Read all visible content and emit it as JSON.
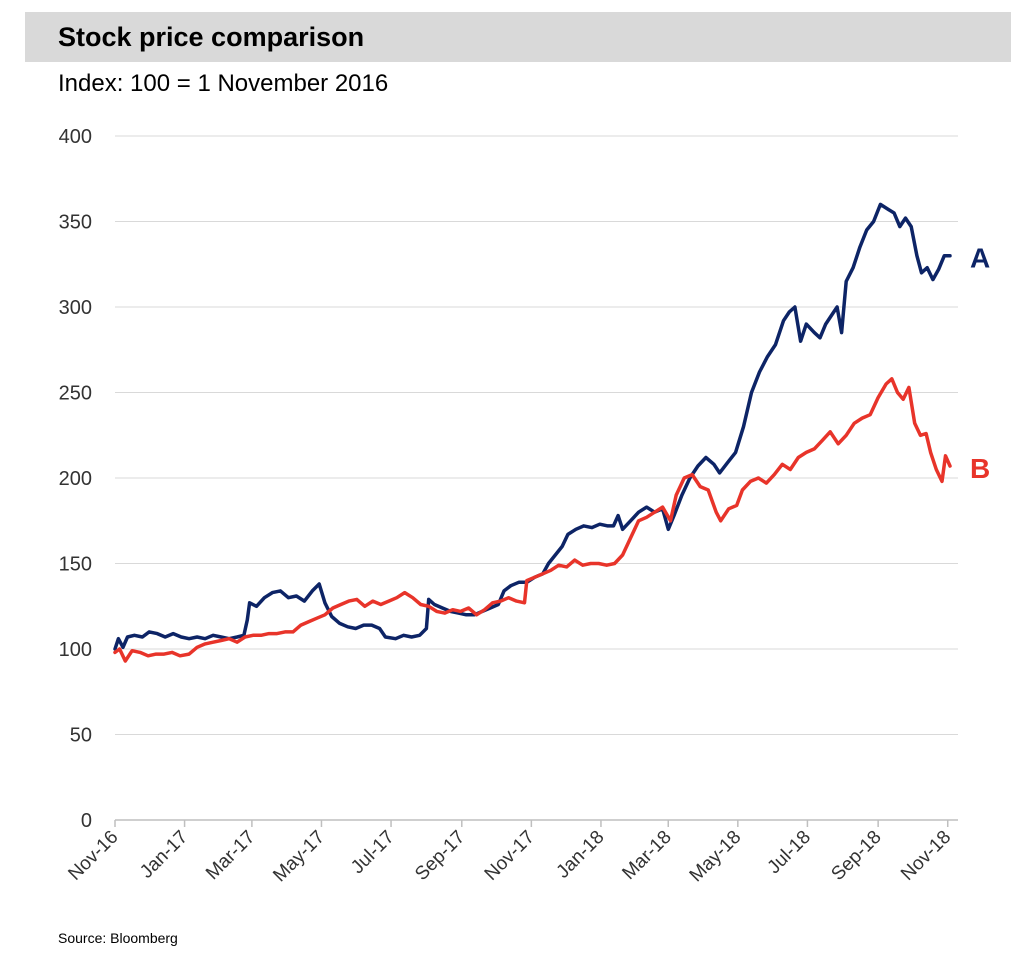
{
  "title": "Stock price comparison",
  "subtitle": "Index: 100 = 1 November 2016",
  "source": "Source: Bloomberg",
  "colors": {
    "A": "#0d2466",
    "B": "#e8342a",
    "grid": "#d9d9d9",
    "axis": "#bfbfbf"
  },
  "chart_data": {
    "type": "line",
    "title": "Stock price comparison",
    "subtitle": "Index: 100 = 1 November 2016",
    "xlabel": "",
    "ylabel": "",
    "ylim": [
      0,
      400
    ],
    "yticks": [
      0,
      50,
      100,
      150,
      200,
      250,
      300,
      350,
      400
    ],
    "xlim": [
      "2016-11-01",
      "2018-11-10"
    ],
    "xticks": [
      {
        "label": "Nov-16",
        "date": "2016-11-01"
      },
      {
        "label": "Jan-17",
        "date": "2017-01-01"
      },
      {
        "label": "Mar-17",
        "date": "2017-03-01"
      },
      {
        "label": "May-17",
        "date": "2017-05-01"
      },
      {
        "label": "Jul-17",
        "date": "2017-07-01"
      },
      {
        "label": "Sep-17",
        "date": "2017-09-01"
      },
      {
        "label": "Nov-17",
        "date": "2017-11-01"
      },
      {
        "label": "Jan-18",
        "date": "2018-01-01"
      },
      {
        "label": "Mar-18",
        "date": "2018-03-01"
      },
      {
        "label": "May-18",
        "date": "2018-05-01"
      },
      {
        "label": "Jul-18",
        "date": "2018-07-01"
      },
      {
        "label": "Sep-18",
        "date": "2018-09-01"
      },
      {
        "label": "Nov-18",
        "date": "2018-11-01"
      }
    ],
    "grid": "horizontal",
    "series": [
      {
        "name": "A",
        "color": "#0d2466",
        "points": [
          [
            "2016-11-01",
            100
          ],
          [
            "2016-11-04",
            106
          ],
          [
            "2016-11-08",
            101
          ],
          [
            "2016-11-12",
            107
          ],
          [
            "2016-11-18",
            108
          ],
          [
            "2016-11-25",
            107
          ],
          [
            "2016-12-01",
            110
          ],
          [
            "2016-12-08",
            109
          ],
          [
            "2016-12-15",
            107
          ],
          [
            "2016-12-22",
            109
          ],
          [
            "2016-12-29",
            107
          ],
          [
            "2017-01-05",
            106
          ],
          [
            "2017-01-12",
            107
          ],
          [
            "2017-01-19",
            106
          ],
          [
            "2017-01-26",
            108
          ],
          [
            "2017-02-02",
            107
          ],
          [
            "2017-02-09",
            106
          ],
          [
            "2017-02-16",
            107
          ],
          [
            "2017-02-22",
            108
          ],
          [
            "2017-02-25",
            117
          ],
          [
            "2017-02-27",
            127
          ],
          [
            "2017-03-05",
            125
          ],
          [
            "2017-03-12",
            130
          ],
          [
            "2017-03-19",
            133
          ],
          [
            "2017-03-26",
            134
          ],
          [
            "2017-04-02",
            130
          ],
          [
            "2017-04-09",
            131
          ],
          [
            "2017-04-16",
            128
          ],
          [
            "2017-04-23",
            134
          ],
          [
            "2017-04-29",
            138
          ],
          [
            "2017-05-04",
            127
          ],
          [
            "2017-05-10",
            119
          ],
          [
            "2017-05-17",
            115
          ],
          [
            "2017-05-24",
            113
          ],
          [
            "2017-05-31",
            112
          ],
          [
            "2017-06-07",
            114
          ],
          [
            "2017-06-14",
            114
          ],
          [
            "2017-06-21",
            112
          ],
          [
            "2017-06-26",
            107
          ],
          [
            "2017-07-05",
            106
          ],
          [
            "2017-07-12",
            108
          ],
          [
            "2017-07-19",
            107
          ],
          [
            "2017-07-26",
            108
          ],
          [
            "2017-08-01",
            112
          ],
          [
            "2017-08-03",
            129
          ],
          [
            "2017-08-08",
            126
          ],
          [
            "2017-08-15",
            124
          ],
          [
            "2017-08-22",
            122
          ],
          [
            "2017-08-29",
            121
          ],
          [
            "2017-09-05",
            120
          ],
          [
            "2017-09-12",
            120
          ],
          [
            "2017-09-19",
            122
          ],
          [
            "2017-09-26",
            124
          ],
          [
            "2017-10-03",
            126
          ],
          [
            "2017-10-08",
            134
          ],
          [
            "2017-10-14",
            137
          ],
          [
            "2017-10-21",
            139
          ],
          [
            "2017-10-28",
            139
          ],
          [
            "2017-11-04",
            142
          ],
          [
            "2017-11-11",
            144
          ],
          [
            "2017-11-16",
            150
          ],
          [
            "2017-11-22",
            155
          ],
          [
            "2017-11-28",
            160
          ],
          [
            "2017-12-03",
            167
          ],
          [
            "2017-12-10",
            170
          ],
          [
            "2017-12-17",
            172
          ],
          [
            "2017-12-24",
            171
          ],
          [
            "2017-12-31",
            173
          ],
          [
            "2018-01-07",
            172
          ],
          [
            "2018-01-12",
            172
          ],
          [
            "2018-01-16",
            178
          ],
          [
            "2018-01-20",
            170
          ],
          [
            "2018-01-27",
            175
          ],
          [
            "2018-02-03",
            180
          ],
          [
            "2018-02-10",
            183
          ],
          [
            "2018-02-17",
            180
          ],
          [
            "2018-02-24",
            182
          ],
          [
            "2018-03-01",
            170
          ],
          [
            "2018-03-06",
            178
          ],
          [
            "2018-03-13",
            190
          ],
          [
            "2018-03-20",
            200
          ],
          [
            "2018-03-27",
            207
          ],
          [
            "2018-04-03",
            212
          ],
          [
            "2018-04-10",
            208
          ],
          [
            "2018-04-15",
            203
          ],
          [
            "2018-04-22",
            209
          ],
          [
            "2018-04-29",
            215
          ],
          [
            "2018-05-06",
            230
          ],
          [
            "2018-05-13",
            250
          ],
          [
            "2018-05-20",
            262
          ],
          [
            "2018-05-27",
            271
          ],
          [
            "2018-06-03",
            278
          ],
          [
            "2018-06-10",
            292
          ],
          [
            "2018-06-15",
            297
          ],
          [
            "2018-06-20",
            300
          ],
          [
            "2018-06-25",
            280
          ],
          [
            "2018-06-30",
            290
          ],
          [
            "2018-07-07",
            285
          ],
          [
            "2018-07-12",
            282
          ],
          [
            "2018-07-17",
            290
          ],
          [
            "2018-07-22",
            295
          ],
          [
            "2018-07-27",
            300
          ],
          [
            "2018-07-31",
            285
          ],
          [
            "2018-08-04",
            315
          ],
          [
            "2018-08-10",
            323
          ],
          [
            "2018-08-16",
            335
          ],
          [
            "2018-08-22",
            345
          ],
          [
            "2018-08-28",
            350
          ],
          [
            "2018-09-03",
            360
          ],
          [
            "2018-09-10",
            357
          ],
          [
            "2018-09-15",
            355
          ],
          [
            "2018-09-20",
            347
          ],
          [
            "2018-09-25",
            352
          ],
          [
            "2018-09-30",
            347
          ],
          [
            "2018-10-05",
            330
          ],
          [
            "2018-10-09",
            320
          ],
          [
            "2018-10-14",
            323
          ],
          [
            "2018-10-19",
            316
          ],
          [
            "2018-10-24",
            322
          ],
          [
            "2018-10-29",
            330
          ],
          [
            "2018-11-03",
            330
          ]
        ]
      },
      {
        "name": "B",
        "color": "#e8342a",
        "points": [
          [
            "2016-11-01",
            98
          ],
          [
            "2016-11-05",
            100
          ],
          [
            "2016-11-10",
            93
          ],
          [
            "2016-11-16",
            99
          ],
          [
            "2016-11-23",
            98
          ],
          [
            "2016-11-30",
            96
          ],
          [
            "2016-12-07",
            97
          ],
          [
            "2016-12-14",
            97
          ],
          [
            "2016-12-21",
            98
          ],
          [
            "2016-12-28",
            96
          ],
          [
            "2017-01-05",
            97
          ],
          [
            "2017-01-12",
            101
          ],
          [
            "2017-01-19",
            103
          ],
          [
            "2017-01-26",
            104
          ],
          [
            "2017-02-02",
            105
          ],
          [
            "2017-02-09",
            106
          ],
          [
            "2017-02-16",
            104
          ],
          [
            "2017-02-23",
            107
          ],
          [
            "2017-03-02",
            108
          ],
          [
            "2017-03-09",
            108
          ],
          [
            "2017-03-16",
            109
          ],
          [
            "2017-03-23",
            109
          ],
          [
            "2017-03-30",
            110
          ],
          [
            "2017-04-06",
            110
          ],
          [
            "2017-04-13",
            114
          ],
          [
            "2017-04-20",
            116
          ],
          [
            "2017-04-27",
            118
          ],
          [
            "2017-05-04",
            120
          ],
          [
            "2017-05-11",
            124
          ],
          [
            "2017-05-18",
            126
          ],
          [
            "2017-05-25",
            128
          ],
          [
            "2017-06-01",
            129
          ],
          [
            "2017-06-08",
            125
          ],
          [
            "2017-06-15",
            128
          ],
          [
            "2017-06-22",
            126
          ],
          [
            "2017-06-29",
            128
          ],
          [
            "2017-07-06",
            130
          ],
          [
            "2017-07-13",
            133
          ],
          [
            "2017-07-20",
            130
          ],
          [
            "2017-07-27",
            126
          ],
          [
            "2017-08-03",
            125
          ],
          [
            "2017-08-10",
            122
          ],
          [
            "2017-08-17",
            121
          ],
          [
            "2017-08-24",
            123
          ],
          [
            "2017-08-31",
            122
          ],
          [
            "2017-09-07",
            124
          ],
          [
            "2017-09-14",
            120
          ],
          [
            "2017-09-21",
            123
          ],
          [
            "2017-09-28",
            127
          ],
          [
            "2017-10-05",
            128
          ],
          [
            "2017-10-12",
            130
          ],
          [
            "2017-10-19",
            128
          ],
          [
            "2017-10-26",
            127
          ],
          [
            "2017-10-28",
            140
          ],
          [
            "2017-11-04",
            142
          ],
          [
            "2017-11-11",
            144
          ],
          [
            "2017-11-18",
            146
          ],
          [
            "2017-11-25",
            149
          ],
          [
            "2017-12-02",
            148
          ],
          [
            "2017-12-09",
            152
          ],
          [
            "2017-12-16",
            149
          ],
          [
            "2017-12-23",
            150
          ],
          [
            "2017-12-30",
            150
          ],
          [
            "2018-01-06",
            149
          ],
          [
            "2018-01-13",
            150
          ],
          [
            "2018-01-20",
            155
          ],
          [
            "2018-01-27",
            165
          ],
          [
            "2018-02-03",
            175
          ],
          [
            "2018-02-10",
            177
          ],
          [
            "2018-02-17",
            180
          ],
          [
            "2018-02-24",
            183
          ],
          [
            "2018-03-03",
            175
          ],
          [
            "2018-03-08",
            190
          ],
          [
            "2018-03-15",
            200
          ],
          [
            "2018-03-22",
            202
          ],
          [
            "2018-03-29",
            195
          ],
          [
            "2018-04-05",
            193
          ],
          [
            "2018-04-12",
            180
          ],
          [
            "2018-04-16",
            175
          ],
          [
            "2018-04-23",
            182
          ],
          [
            "2018-04-30",
            184
          ],
          [
            "2018-05-05",
            193
          ],
          [
            "2018-05-12",
            198
          ],
          [
            "2018-05-19",
            200
          ],
          [
            "2018-05-26",
            197
          ],
          [
            "2018-06-02",
            202
          ],
          [
            "2018-06-09",
            208
          ],
          [
            "2018-06-16",
            205
          ],
          [
            "2018-06-23",
            212
          ],
          [
            "2018-06-30",
            215
          ],
          [
            "2018-07-07",
            217
          ],
          [
            "2018-07-14",
            222
          ],
          [
            "2018-07-21",
            227
          ],
          [
            "2018-07-28",
            220
          ],
          [
            "2018-08-04",
            225
          ],
          [
            "2018-08-11",
            232
          ],
          [
            "2018-08-18",
            235
          ],
          [
            "2018-08-25",
            237
          ],
          [
            "2018-09-01",
            247
          ],
          [
            "2018-09-08",
            255
          ],
          [
            "2018-09-13",
            258
          ],
          [
            "2018-09-18",
            250
          ],
          [
            "2018-09-23",
            246
          ],
          [
            "2018-09-28",
            253
          ],
          [
            "2018-10-03",
            232
          ],
          [
            "2018-10-08",
            225
          ],
          [
            "2018-10-13",
            226
          ],
          [
            "2018-10-17",
            215
          ],
          [
            "2018-10-22",
            205
          ],
          [
            "2018-10-27",
            198
          ],
          [
            "2018-10-30",
            213
          ],
          [
            "2018-11-03",
            207
          ]
        ]
      }
    ],
    "series_labels_at_line_end": [
      "A",
      "B"
    ],
    "source": "Source: Bloomberg"
  }
}
